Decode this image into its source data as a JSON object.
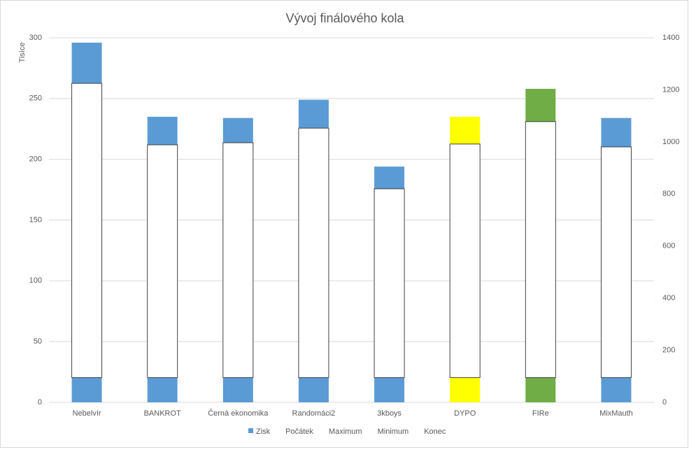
{
  "chart_data": {
    "type": "stock-volume",
    "title": "Vývoj finálového kola",
    "ylabel": "Tisíce",
    "categories": [
      "Nebelvír",
      "BANKROT",
      "Černá ekonomika",
      "Randomáci2",
      "3kboys",
      "DYPO",
      "FIRe",
      "MixMauth"
    ],
    "series": [
      {
        "name": "Zisk",
        "color": "#5b9bd5",
        "colors": [
          "#5b9bd5",
          "#5b9bd5",
          "#5b9bd5",
          "#5b9bd5",
          "#5b9bd5",
          "#ffff00",
          "#70ad47",
          "#5b9bd5"
        ],
        "values": [
          296,
          235,
          234,
          249,
          194,
          235,
          258,
          234
        ]
      },
      {
        "name": "Počátek",
        "axis": "y2",
        "values": [
          95,
          95,
          95,
          95,
          95,
          95,
          95,
          95
        ]
      },
      {
        "name": "Maximum",
        "axis": "y2",
        "values": [
          1225,
          989,
          997,
          1053,
          820,
          992,
          1078,
          981
        ]
      },
      {
        "name": "Minimum",
        "axis": "y2",
        "values": [
          95,
          95,
          95,
          95,
          95,
          95,
          95,
          95
        ]
      },
      {
        "name": "Konec",
        "axis": "y2",
        "values": [
          1225,
          989,
          997,
          1053,
          820,
          992,
          1078,
          981
        ]
      }
    ],
    "ylim": [
      0,
      300
    ],
    "yticks": [
      0,
      50,
      100,
      150,
      200,
      250,
      300
    ],
    "y2lim": [
      0,
      1400
    ],
    "y2ticks": [
      0,
      200,
      400,
      600,
      800,
      1000,
      1200,
      1400
    ],
    "grid": true,
    "legend": "bottom"
  }
}
